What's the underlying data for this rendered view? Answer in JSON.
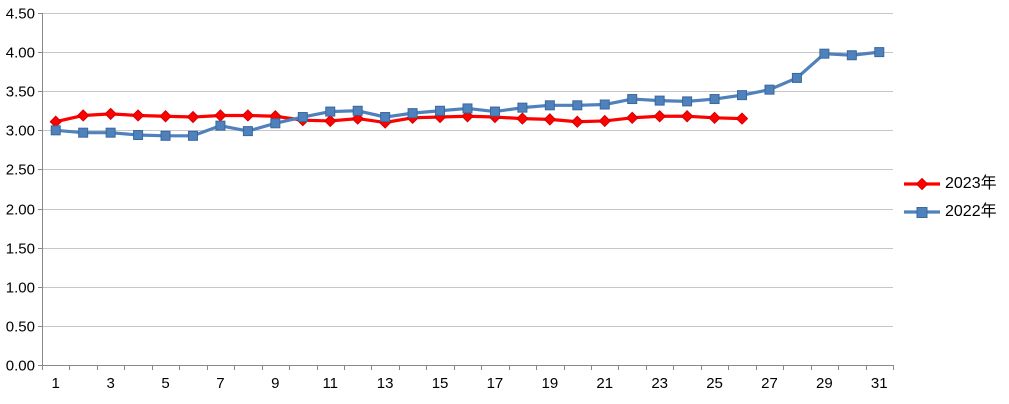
{
  "chart_data": {
    "type": "line",
    "title": "",
    "x_axis": {
      "min": 1,
      "max": 31,
      "tick_labels": [
        "1",
        "3",
        "5",
        "7",
        "9",
        "11",
        "13",
        "15",
        "17",
        "19",
        "21",
        "23",
        "25",
        "27",
        "29",
        "31"
      ],
      "label_interval": 2
    },
    "y_axis": {
      "min": 0,
      "max": 4.5,
      "step": 0.5,
      "tick_labels": [
        "0.00",
        "0.50",
        "1.00",
        "1.50",
        "2.00",
        "2.50",
        "3.00",
        "3.50",
        "4.00",
        "4.50"
      ]
    },
    "grid": true,
    "legend_position": "right",
    "series": [
      {
        "name": "2023年",
        "marker": "diamond",
        "color": "#FF0000",
        "marker_stroke": "#D40000",
        "values": [
          3.11,
          3.19,
          3.21,
          3.19,
          3.18,
          3.17,
          3.19,
          3.19,
          3.18,
          3.13,
          3.12,
          3.15,
          3.1,
          3.16,
          3.17,
          3.18,
          3.17,
          3.15,
          3.14,
          3.11,
          3.12,
          3.16,
          3.18,
          3.18,
          3.16,
          3.15
        ]
      },
      {
        "name": "2022年",
        "marker": "square",
        "color": "#4F81BD",
        "marker_stroke": "#3A689B",
        "values": [
          3.0,
          2.97,
          2.97,
          2.94,
          2.93,
          2.93,
          3.06,
          2.99,
          3.09,
          3.17,
          3.24,
          3.25,
          3.17,
          3.22,
          3.25,
          3.28,
          3.24,
          3.29,
          3.32,
          3.32,
          3.33,
          3.4,
          3.38,
          3.37,
          3.4,
          3.45,
          3.52,
          3.67,
          3.98,
          3.96,
          4.0
        ]
      }
    ],
    "colors": {
      "gridline": "#C6C6C6",
      "axis": "#898989",
      "tick_text": "#000000",
      "background": "#FFFFFF"
    }
  }
}
